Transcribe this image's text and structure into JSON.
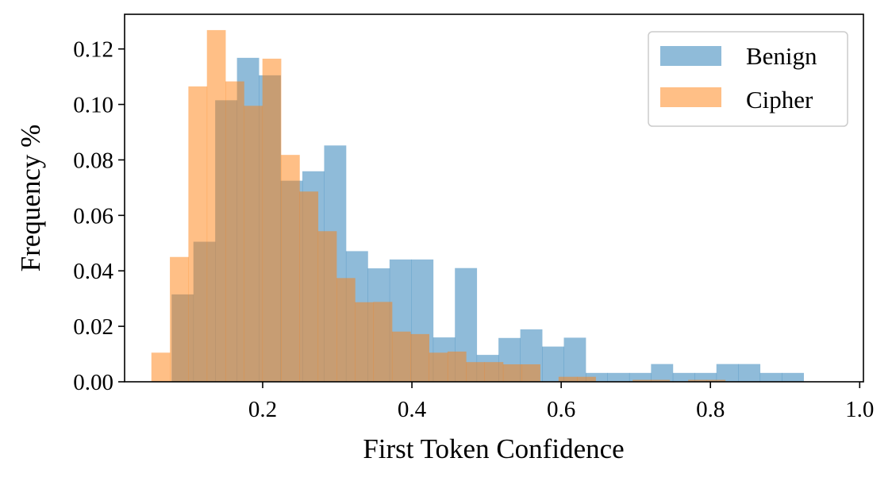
{
  "chart_data": {
    "type": "bar",
    "subtype": "overlapping-histogram",
    "title": "",
    "xlabel": "First Token Confidence",
    "ylabel": "Frequency %",
    "xlim": [
      0.015,
      1.005
    ],
    "ylim": [
      0.0,
      0.1325
    ],
    "xticks": [
      0.2,
      0.4,
      0.6,
      0.8,
      1.0
    ],
    "xtick_labels": [
      "0.2",
      "0.4",
      "0.6",
      "0.8",
      "1.0"
    ],
    "yticks": [
      0.0,
      0.02,
      0.04,
      0.06,
      0.08,
      0.1,
      0.12
    ],
    "ytick_labels": [
      "0.00",
      "0.02",
      "0.04",
      "0.06",
      "0.08",
      "0.10",
      "0.12"
    ],
    "grid": false,
    "legend_position": "top-right",
    "series": [
      {
        "name": "Benign",
        "color": "#1f77b4",
        "alpha": 0.5,
        "bin_width": 0.0292,
        "bin_starts": [
          0.078,
          0.1072,
          0.1364,
          0.1656,
          0.1948,
          0.224,
          0.2532,
          0.2824,
          0.3116,
          0.3408,
          0.37,
          0.3992,
          0.4284,
          0.4576,
          0.4868,
          0.516,
          0.5452,
          0.5744,
          0.6036,
          0.6328,
          0.662,
          0.6912,
          0.7204,
          0.7496,
          0.7788,
          0.808,
          0.8372,
          0.8664,
          0.8956,
          0.9248
        ],
        "values": [
          0.0315,
          0.0505,
          0.1015,
          0.1168,
          0.1105,
          0.0725,
          0.0759,
          0.0852,
          0.0471,
          0.0409,
          0.0441,
          0.0441,
          0.016,
          0.041,
          0.0097,
          0.0158,
          0.0189,
          0.0127,
          0.0159,
          0.0032,
          0.0032,
          0.0032,
          0.0064,
          0.0032,
          0.0032,
          0.0064,
          0.0064,
          0.0032,
          0.0032,
          0.0
        ]
      },
      {
        "name": "Cipher",
        "color": "#ff7f0e",
        "alpha": 0.5,
        "bin_width": 0.0248,
        "bin_starts": [
          0.0509,
          0.0757,
          0.1005,
          0.1253,
          0.1501,
          0.1749,
          0.1997,
          0.2245,
          0.2493,
          0.2741,
          0.2989,
          0.3237,
          0.3485,
          0.3733,
          0.3981,
          0.4229,
          0.4477,
          0.4725,
          0.4973,
          0.5221,
          0.5469,
          0.5717,
          0.5965,
          0.6213,
          0.6461,
          0.6709,
          0.6957,
          0.7205,
          0.7453,
          0.7701,
          0.7949,
          0.8197,
          0.8445,
          0.8693,
          0.8941,
          0.9189
        ],
        "values": [
          0.0105,
          0.045,
          0.1065,
          0.1268,
          0.1083,
          0.0995,
          0.1165,
          0.0818,
          0.0686,
          0.0543,
          0.0374,
          0.0287,
          0.0288,
          0.0181,
          0.0172,
          0.0105,
          0.0109,
          0.0071,
          0.0071,
          0.0063,
          0.0063,
          0.0,
          0.0018,
          0.0018,
          0.0,
          0.0,
          0.0007,
          0.0007,
          0.0,
          0.0007,
          0.0007,
          0.0,
          0.0,
          0.0,
          0.0,
          0.0
        ]
      }
    ]
  }
}
